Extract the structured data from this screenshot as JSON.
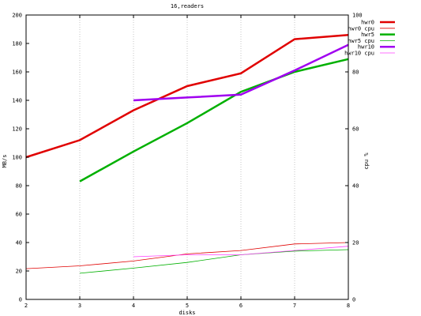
{
  "chart_data": {
    "type": "line",
    "title": "16,readers",
    "xlabel": "disks",
    "ylabel": "MB/s",
    "y2label": "cpu %",
    "xlim": [
      2,
      8
    ],
    "ylim": [
      0,
      200
    ],
    "y2lim": [
      0,
      100
    ],
    "xticks": [
      2,
      3,
      4,
      5,
      6,
      7,
      8
    ],
    "yticks": [
      0,
      20,
      40,
      60,
      80,
      100,
      120,
      140,
      160,
      180,
      200
    ],
    "y2ticks": [
      0,
      20,
      40,
      60,
      80,
      100
    ],
    "grid": "vertical-dotted",
    "legend_position": "top-right",
    "series": [
      {
        "name": "hwr0",
        "axis": "y1",
        "color": "#e00000",
        "width": 2.5,
        "x": [
          2,
          3,
          4,
          5,
          6,
          7,
          8
        ],
        "values": [
          100,
          112,
          133,
          150,
          159,
          183,
          186
        ]
      },
      {
        "name": "hwr0 cpu",
        "axis": "y2",
        "color": "#e00000",
        "width": 0.8,
        "x": [
          2,
          3,
          4,
          5,
          6,
          7,
          8
        ],
        "values": [
          10.8,
          11.8,
          13.5,
          16,
          17.2,
          19.5,
          20
        ]
      },
      {
        "name": "hwr5",
        "axis": "y1",
        "color": "#00b000",
        "width": 2.5,
        "x": [
          3,
          4,
          5,
          6,
          7,
          8
        ],
        "values": [
          83,
          104,
          124,
          146,
          160,
          169
        ]
      },
      {
        "name": "hwr5 cpu",
        "axis": "y2",
        "color": "#00b000",
        "width": 0.8,
        "x": [
          3,
          4,
          5,
          6,
          7,
          8
        ],
        "values": [
          9.2,
          11,
          13,
          15.7,
          17,
          17.5
        ]
      },
      {
        "name": "hwr10",
        "axis": "y1",
        "color": "#a000f0",
        "width": 2.5,
        "x": [
          4,
          5,
          6,
          7,
          8
        ],
        "values": [
          140,
          142,
          144,
          161,
          179
        ]
      },
      {
        "name": "hwr10 cpu",
        "axis": "y2",
        "color": "#ff40ff",
        "width": 0.8,
        "x": [
          4,
          5,
          6,
          7,
          8
        ],
        "values": [
          15,
          15.7,
          15.7,
          17.2,
          18.7
        ]
      }
    ]
  }
}
